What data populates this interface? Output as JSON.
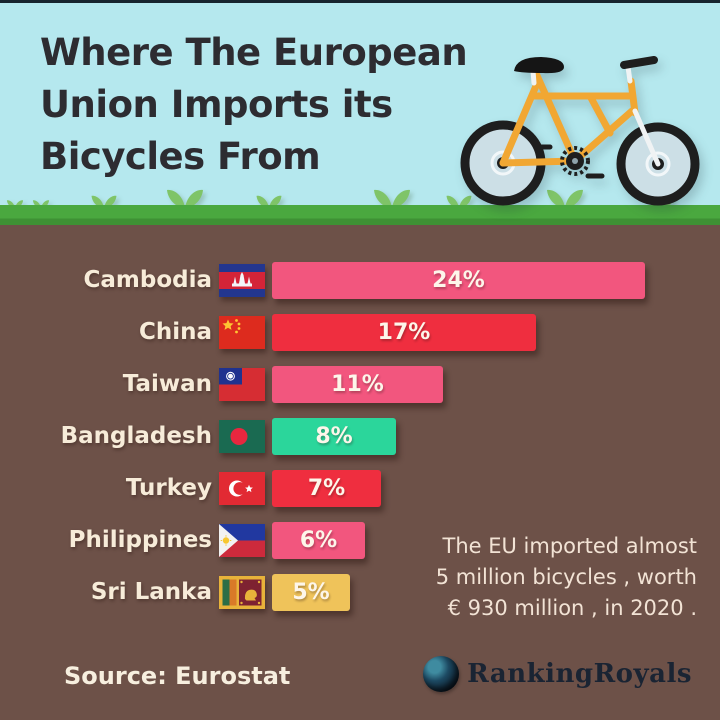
{
  "header": {
    "title_lines": [
      "Where The European",
      "Union Imports its",
      "Bicycles From"
    ]
  },
  "chart_data": {
    "type": "bar",
    "orientation": "horizontal",
    "title": "Where The European Union Imports its Bicycles From",
    "unit": "%",
    "categories": [
      "Cambodia",
      "China",
      "Taiwan",
      "Bangladesh",
      "Turkey",
      "Philippines",
      "Sri Lanka"
    ],
    "values": [
      24,
      17,
      11,
      8,
      7,
      6,
      5
    ],
    "value_labels": [
      "24%",
      "17%",
      "11%",
      "8%",
      "7%",
      "6%",
      "5%"
    ],
    "bar_colors": [
      "#f2567e",
      "#ef2e3f",
      "#f2567e",
      "#2bd69b",
      "#ef2e3f",
      "#f2567e",
      "#efc35a"
    ],
    "xlim": [
      0,
      24
    ],
    "grid": false,
    "legend": "none",
    "flags": [
      "cambodia",
      "china",
      "taiwan",
      "bangladesh",
      "turkey",
      "philippines",
      "sri-lanka"
    ]
  },
  "note": {
    "lines": [
      "The EU imported almost",
      "5 million bicycles , worth",
      "€ 930 million , in 2020 ."
    ]
  },
  "source_label": "Source: Eurostat",
  "brand": {
    "name": "RankingRoyals"
  },
  "colors": {
    "header_bg": "#b5e8ee",
    "body_bg": "#6d5148",
    "grass": "#4aa83f",
    "sprout": "#7fc468",
    "pink": "#f2567e",
    "red": "#ef2e3f",
    "green": "#2bd69b",
    "yellow": "#efc35a",
    "label_text": "#f7ecd9",
    "title_text": "#2d2c31"
  }
}
